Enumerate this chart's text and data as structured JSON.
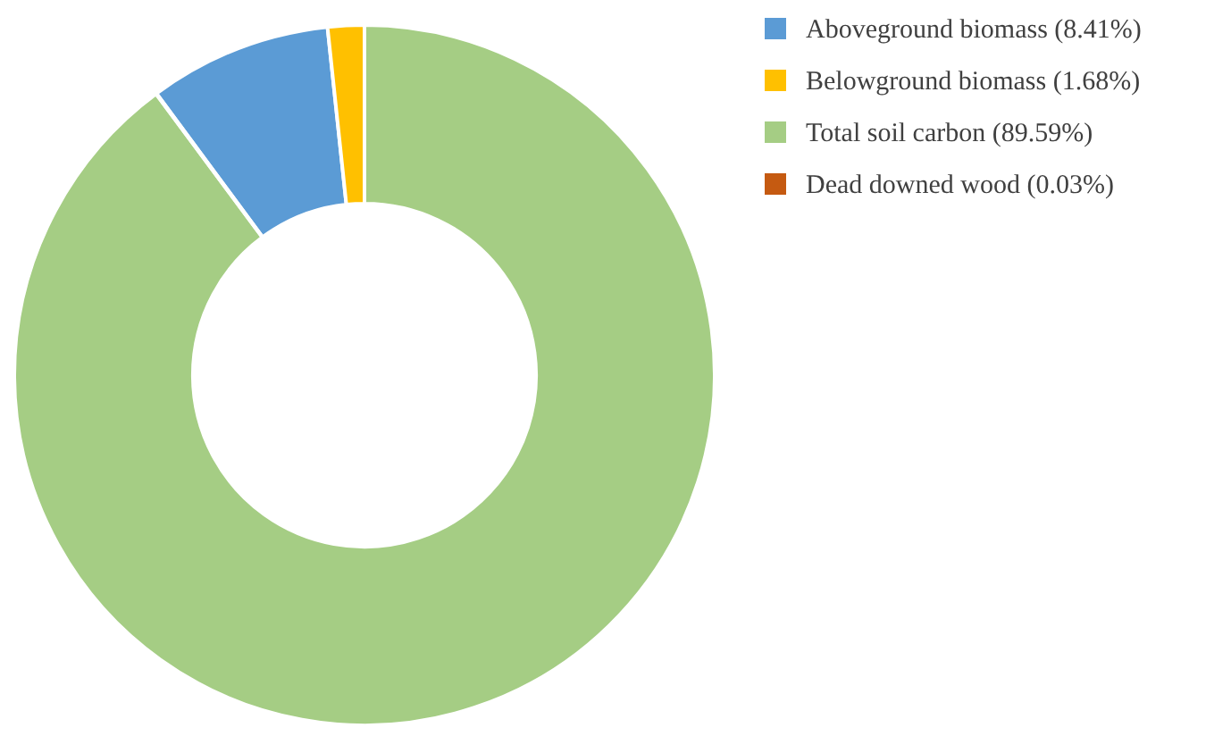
{
  "chart_data": {
    "type": "donut",
    "categories": [
      "Aboveground biomass (8.41%)",
      "Belowground biomass (1.68%)",
      "Total soil carbon (89.59%)",
      "Dead downed wood (0.03%)"
    ],
    "values": [
      8.41,
      1.68,
      89.59,
      0.03
    ],
    "colors": [
      "#5b9bd5",
      "#ffc000",
      "#a5cd84",
      "#c55a11"
    ],
    "legend": "right"
  }
}
